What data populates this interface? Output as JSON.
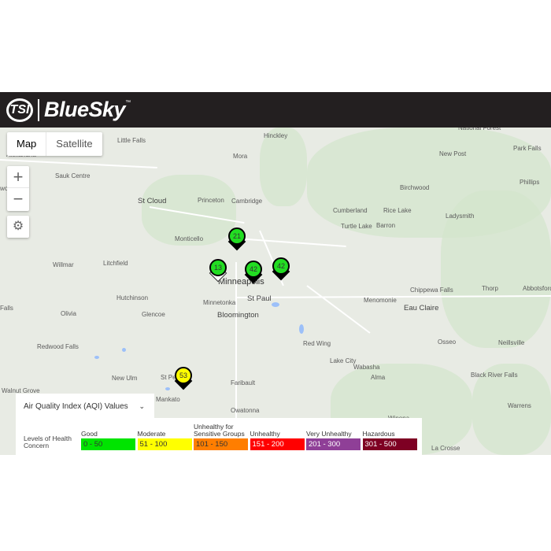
{
  "header": {
    "logo_mark": "TSI",
    "brand": "BlueSky",
    "trademark": "™"
  },
  "map_controls": {
    "map_label": "Map",
    "satellite_label": "Satellite",
    "zoom_in": "+",
    "zoom_out": "−",
    "settings_icon": "⚙"
  },
  "places": [
    "Little Falls",
    "Hinckley",
    "National Forest",
    "Alexandria",
    "Mora",
    "New Post",
    "Park Falls",
    "Sauk Centre",
    "Birchwood",
    "Phillips",
    "wood",
    "St Cloud",
    "Princeton",
    "Cambridge",
    "Cumberland",
    "Rice Lake",
    "Ladysmith",
    "Turtle Lake",
    "Barron",
    "Monticello",
    "Willmar",
    "Litchfield",
    "Minneapolis",
    "St Paul",
    "Minnetonka",
    "Hutchinson",
    "Chippewa Falls",
    "Menomonie",
    "Thorp",
    "Abbotsford",
    "Olivia",
    "Glencoe",
    "Bloomington",
    "Eau Claire",
    "Falls",
    "Red Wing",
    "Osseo",
    "Neillsville",
    "Redwood Falls",
    "Lake City",
    "Wabasha",
    "Alma",
    "Faribault",
    "New Ulm",
    "St Pe",
    "Black River Falls",
    "Walnut Grove",
    "Mankato",
    "Owatonna",
    "Warrens",
    "Winona",
    "La Crosse"
  ],
  "markers": [
    {
      "value": "21",
      "color": "#22dd22"
    },
    {
      "value": "13",
      "color": "#22dd22"
    },
    {
      "value": "42",
      "color": "#22dd22"
    },
    {
      "value": "42",
      "color": "#22dd22"
    },
    {
      "value": "53",
      "color": "#ffff00"
    }
  ],
  "legend": {
    "title": "Air Quality Index (AQI) Values",
    "levels_label": "Levels of Health Concern",
    "levels": [
      {
        "name": "Good",
        "range": "0 - 50",
        "color": "#00e400",
        "text": "#333"
      },
      {
        "name": "Moderate",
        "range": "51 - 100",
        "color": "#ffff00",
        "text": "#333"
      },
      {
        "name": "Unhealthy for Sensitive Groups",
        "range": "101 - 150",
        "color": "#ff7e00",
        "text": "#333"
      },
      {
        "name": "Unhealthy",
        "range": "151 - 200",
        "color": "#ff0000",
        "text": "#fff"
      },
      {
        "name": "Very Unhealthy",
        "range": "201 - 300",
        "color": "#8f3f97",
        "text": "#fff"
      },
      {
        "name": "Hazardous",
        "range": "301 - 500",
        "color": "#7e0023",
        "text": "#fff"
      }
    ]
  }
}
